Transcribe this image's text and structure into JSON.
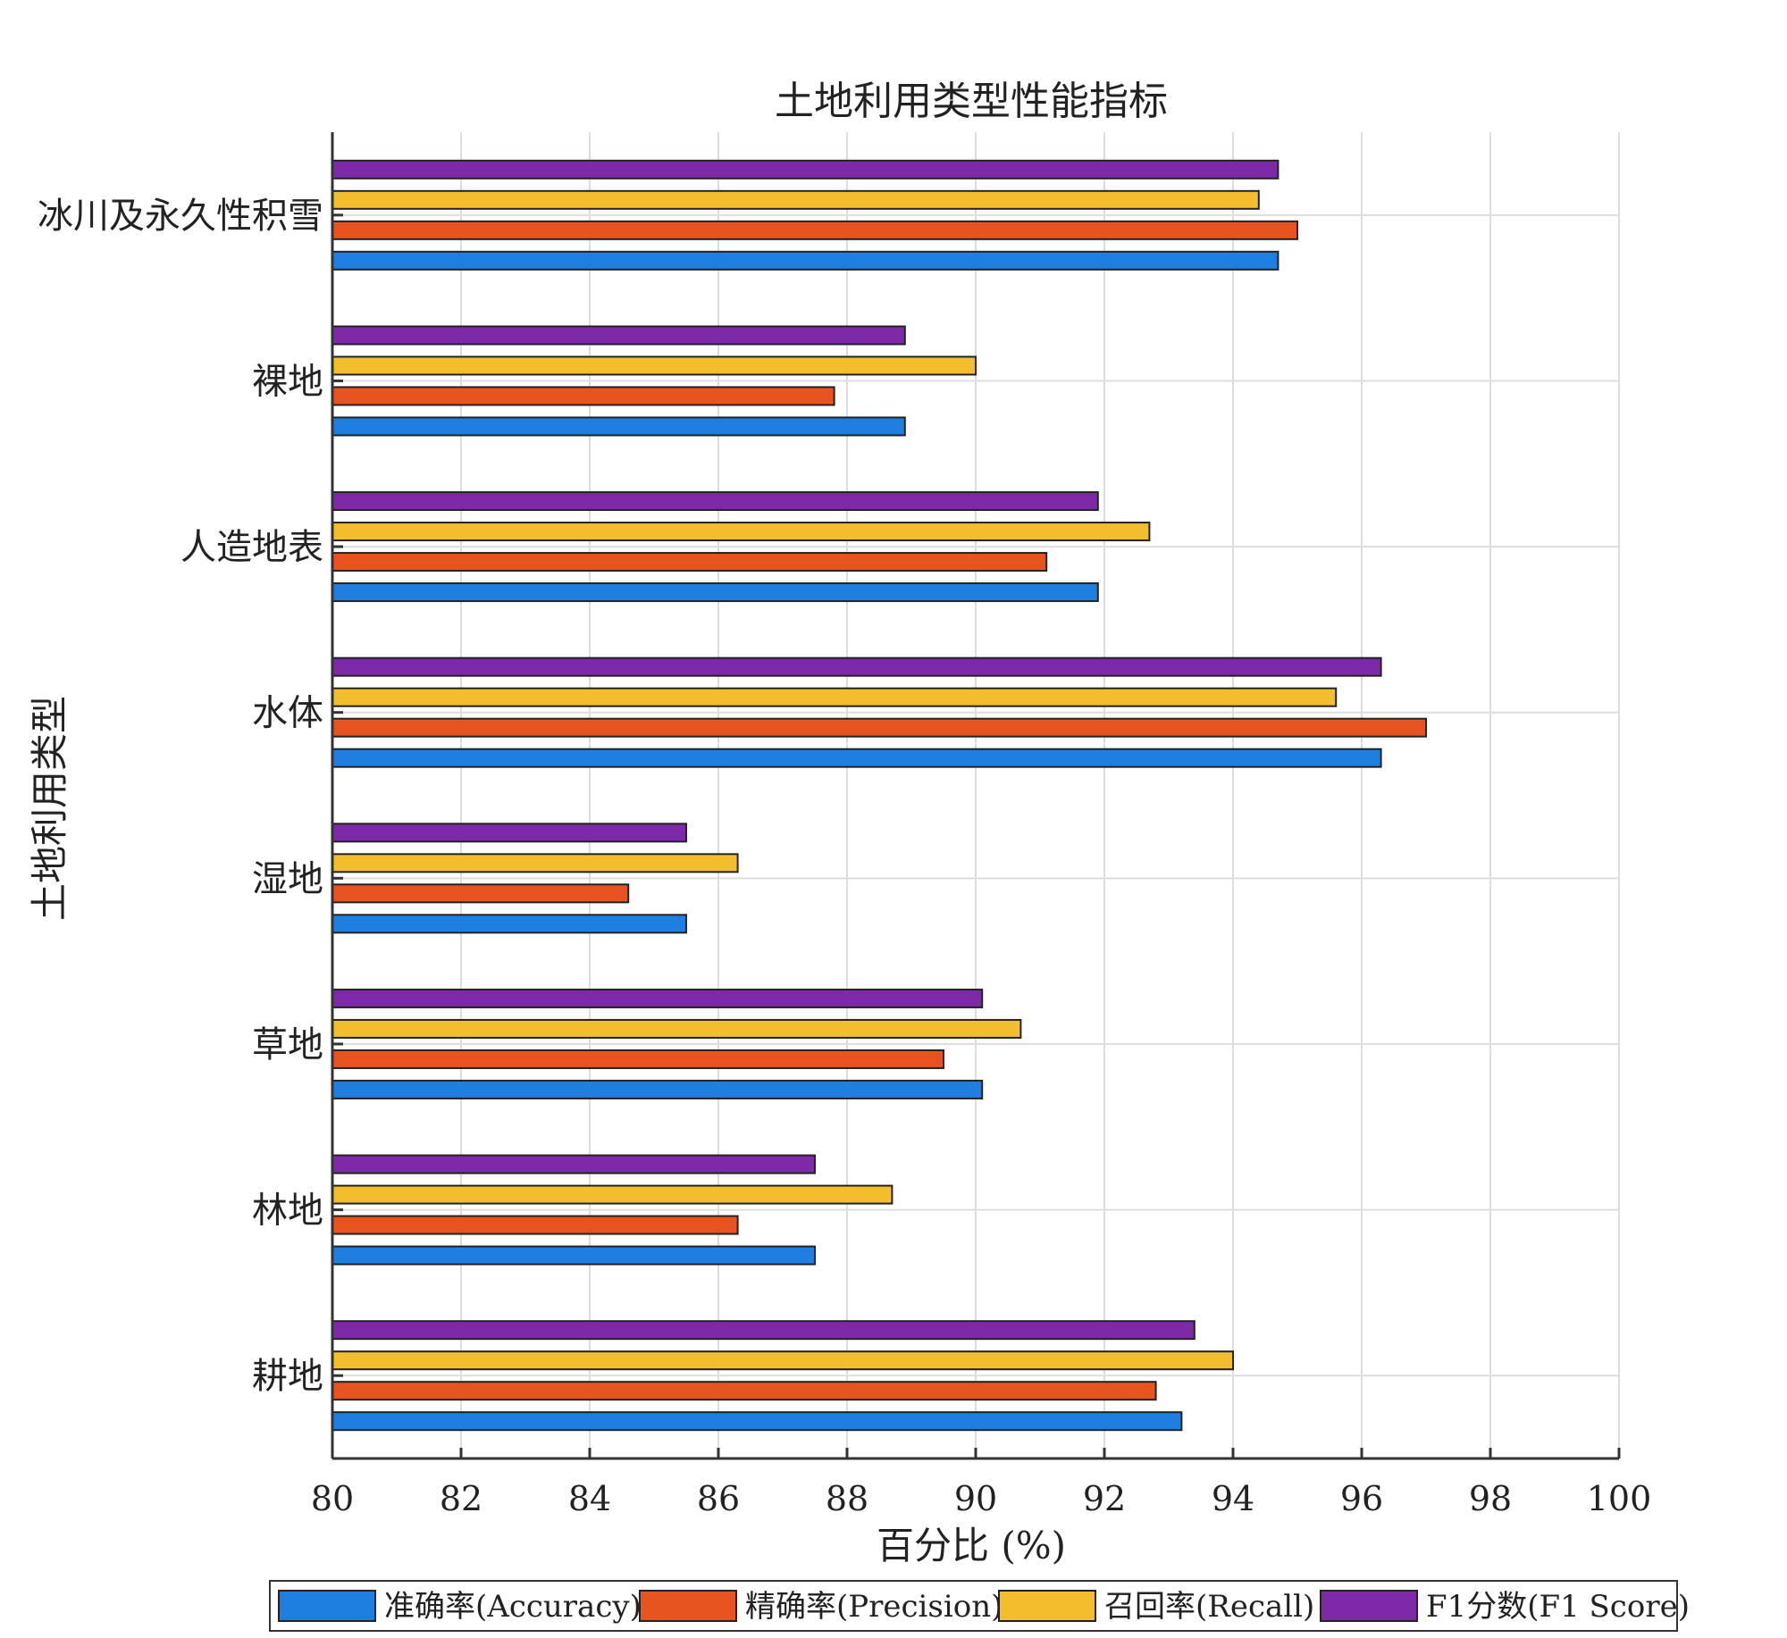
{
  "chart_data": {
    "type": "bar",
    "orientation": "horizontal",
    "title": "土地利用类型性能指标",
    "xlabel": "百分比 (%)",
    "ylabel": "土地利用类型",
    "xlim": [
      80,
      100
    ],
    "xticks": [
      "80",
      "82",
      "84",
      "86",
      "88",
      "90",
      "92",
      "94",
      "96",
      "98",
      "100"
    ],
    "grid": true,
    "legend_position": "bottom",
    "categories": [
      "冰川及永久性积雪",
      "裸地",
      "人造地表",
      "水体",
      "湿地",
      "草地",
      "林地",
      "耕地"
    ],
    "series": [
      {
        "name": "准确率(Accuracy)",
        "color": "#1f7fe0",
        "values": [
          94.7,
          88.9,
          91.9,
          96.3,
          85.5,
          90.1,
          87.5,
          93.2
        ]
      },
      {
        "name": "精确率(Precision)",
        "color": "#e8531f",
        "values": [
          95.0,
          87.8,
          91.1,
          97.0,
          84.6,
          89.5,
          86.3,
          92.8
        ]
      },
      {
        "name": "召回率(Recall)",
        "color": "#f2be2e",
        "values": [
          94.4,
          90.0,
          92.7,
          95.6,
          86.3,
          90.7,
          88.7,
          94.0
        ]
      },
      {
        "name": "F1分数(F1 Score)",
        "color": "#7e2aa8",
        "values": [
          94.7,
          88.9,
          91.9,
          96.3,
          85.5,
          90.1,
          87.5,
          93.4
        ]
      }
    ]
  }
}
